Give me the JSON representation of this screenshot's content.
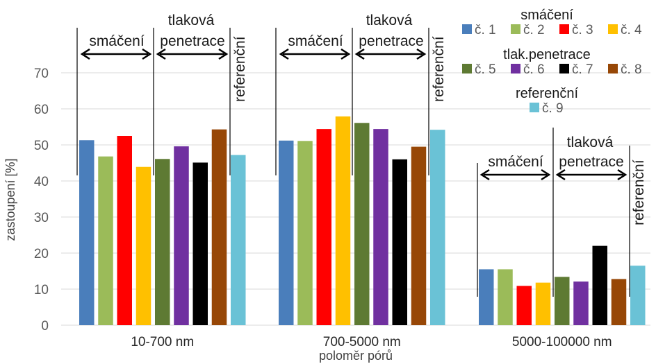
{
  "chart_data": {
    "type": "bar",
    "title": "",
    "xlabel": "poloměr pórů",
    "ylabel": "zastoupení [%]",
    "ylim": [
      0,
      80
    ],
    "yticks": [
      0,
      10,
      20,
      30,
      40,
      50,
      60,
      70
    ],
    "grid": true,
    "categories": [
      "10-700 nm",
      "700-5000 nm",
      "5000-100000 nm"
    ],
    "series": [
      {
        "name": "č. 1",
        "color": "#4a7ebb",
        "values": [
          51.3,
          51.2,
          15.5
        ]
      },
      {
        "name": "č. 2",
        "color": "#9bbb59",
        "values": [
          46.8,
          51.1,
          15.5
        ]
      },
      {
        "name": "č. 3",
        "color": "#ff0000",
        "values": [
          52.5,
          54.4,
          10.9
        ]
      },
      {
        "name": "č. 4",
        "color": "#ffc000",
        "values": [
          43.9,
          57.9,
          11.8
        ]
      },
      {
        "name": "č. 5",
        "color": "#5e7a33",
        "values": [
          46.1,
          56.1,
          13.4
        ]
      },
      {
        "name": "č. 6",
        "color": "#7030a0",
        "values": [
          49.6,
          54.4,
          12.1
        ]
      },
      {
        "name": "č. 7",
        "color": "#000000",
        "values": [
          45.1,
          46.0,
          22.0
        ]
      },
      {
        "name": "č. 8",
        "color": "#974706",
        "values": [
          54.3,
          49.5,
          12.8
        ]
      },
      {
        "name": "č. 9",
        "color": "#6ac2d6",
        "values": [
          47.2,
          54.2,
          16.5
        ]
      }
    ],
    "legend": {
      "placement": "top-right",
      "groups": [
        {
          "title": "smáčení",
          "items": [
            0,
            1,
            2,
            3
          ]
        },
        {
          "title": "tlak.penetrace",
          "items": [
            4,
            5,
            6,
            7
          ]
        },
        {
          "title": "referenční",
          "items": [
            8
          ]
        }
      ]
    },
    "annotations": {
      "wetting": "smáčení",
      "pressure_l1": "tlaková",
      "pressure_l2": "penetrace",
      "reference": "referenční"
    }
  }
}
